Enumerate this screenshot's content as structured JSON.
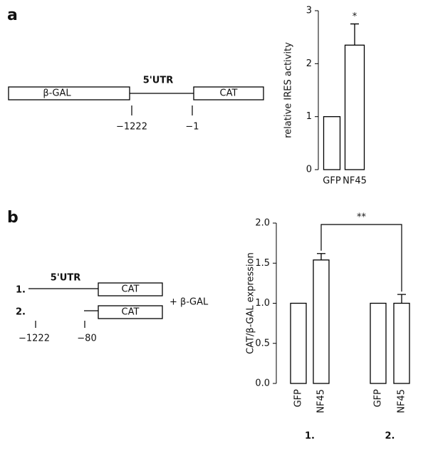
{
  "panels": [
    {
      "label": "a",
      "diagram": {
        "box_left": "β-GAL",
        "utr": "5'UTR",
        "box_right": "CAT",
        "pos_left": "−1222",
        "pos_right": "−1"
      }
    },
    {
      "label": "b",
      "diagram": {
        "row1": "1.",
        "row2": "2.",
        "utr": "5'UTR",
        "box1": "CAT",
        "box2": "CAT",
        "plus": "+ β-GAL",
        "pos_left": "−1222",
        "pos_right": "−80"
      }
    }
  ],
  "chart_data": [
    {
      "type": "bar",
      "y_label": "relative IRES activity",
      "categories": [
        "GFP",
        "NF45"
      ],
      "values": [
        1,
        2.35
      ],
      "errors": [
        null,
        0.4
      ],
      "color": "#ffffff",
      "ylim": [
        0,
        3
      ],
      "yticks": [
        0,
        1,
        2,
        3
      ],
      "annotation": "*"
    },
    {
      "type": "bar",
      "y_label": "CAT/β-GAL expression",
      "categories": [
        "GFP",
        "NF45",
        "GFP",
        "NF45"
      ],
      "groups": [
        "1.",
        "2."
      ],
      "values": [
        1,
        1.54,
        1,
        1.0
      ],
      "errors": [
        null,
        0.08,
        null,
        0.11
      ],
      "color": "#ffffff",
      "ylim": [
        0,
        2
      ],
      "yticks": [
        {
          "value": 0,
          "label": "0.0"
        },
        {
          "value": 0.5,
          "label": "0.5"
        },
        {
          "value": 1,
          "label": "1.0"
        },
        {
          "value": 1.5,
          "label": "1.5"
        },
        {
          "value": 2,
          "label": "2.0"
        }
      ],
      "annotation": "**"
    }
  ]
}
